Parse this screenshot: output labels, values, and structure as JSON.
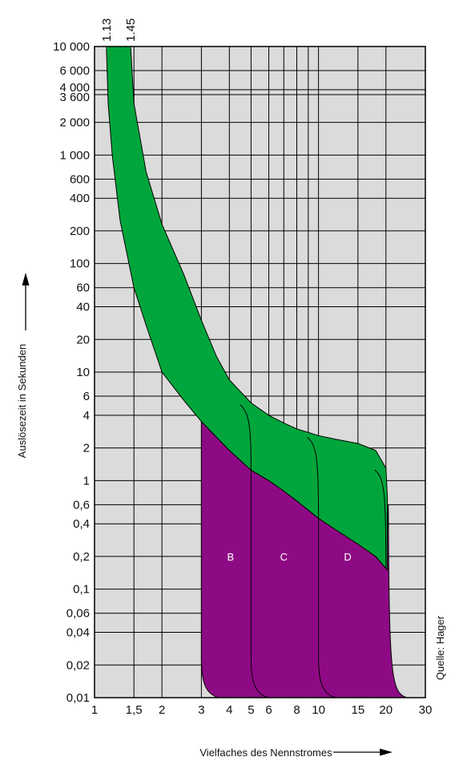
{
  "chart_data": {
    "type": "area",
    "xlabel": "Vielfaches des Nennstromes",
    "ylabel": "Auslösezeit in Sekunden",
    "source": "Quelle: Hager",
    "x_scale": "log",
    "y_scale": "log",
    "xlim": [
      1,
      30
    ],
    "ylim": [
      0.01,
      10000
    ],
    "x_ticks": [
      {
        "value": 1,
        "label": "1"
      },
      {
        "value": 1.5,
        "label": "1,5"
      },
      {
        "value": 2,
        "label": "2"
      },
      {
        "value": 3,
        "label": "3"
      },
      {
        "value": 4,
        "label": "4"
      },
      {
        "value": 5,
        "label": "5"
      },
      {
        "value": 6,
        "label": "6"
      },
      {
        "value": 8,
        "label": "8"
      },
      {
        "value": 10,
        "label": "10"
      },
      {
        "value": 15,
        "label": "15"
      },
      {
        "value": 20,
        "label": "20"
      },
      {
        "value": 30,
        "label": "30"
      }
    ],
    "x_gridlines": [
      1.5,
      2,
      3,
      4,
      5,
      6,
      7,
      8,
      9,
      10,
      15,
      20
    ],
    "y_ticks": [
      {
        "value": 10000,
        "label": "10 000"
      },
      {
        "value": 6000,
        "label": "6 000"
      },
      {
        "value": 4000,
        "label": "4 000"
      },
      {
        "value": 3600,
        "label": "3 600"
      },
      {
        "value": 2000,
        "label": "2 000"
      },
      {
        "value": 1000,
        "label": "1 000"
      },
      {
        "value": 600,
        "label": "600"
      },
      {
        "value": 400,
        "label": "400"
      },
      {
        "value": 200,
        "label": "200"
      },
      {
        "value": 100,
        "label": "100"
      },
      {
        "value": 60,
        "label": "60"
      },
      {
        "value": 40,
        "label": "40"
      },
      {
        "value": 20,
        "label": "20"
      },
      {
        "value": 10,
        "label": "10"
      },
      {
        "value": 6,
        "label": "6"
      },
      {
        "value": 4,
        "label": "4"
      },
      {
        "value": 2,
        "label": "2"
      },
      {
        "value": 1,
        "label": "1"
      },
      {
        "value": 0.6,
        "label": "0,6"
      },
      {
        "value": 0.4,
        "label": "0,4"
      },
      {
        "value": 0.2,
        "label": "0,2"
      },
      {
        "value": 0.1,
        "label": "0,1"
      },
      {
        "value": 0.06,
        "label": "0,06"
      },
      {
        "value": 0.04,
        "label": "0,04"
      },
      {
        "value": 0.02,
        "label": "0,02"
      },
      {
        "value": 0.01,
        "label": "0,01"
      }
    ],
    "top_markers": [
      {
        "value": 1.13,
        "label": "1.13"
      },
      {
        "value": 1.45,
        "label": "1.45"
      }
    ],
    "thermal_band": {
      "color": "#00a63c",
      "upper": [
        [
          1.45,
          10000
        ],
        [
          1.5,
          3000
        ],
        [
          1.7,
          700
        ],
        [
          2,
          230
        ],
        [
          2.5,
          80
        ],
        [
          3,
          30
        ],
        [
          3.5,
          14
        ],
        [
          4,
          8.5
        ],
        [
          5,
          5.2
        ],
        [
          6,
          4
        ],
        [
          7,
          3.4
        ],
        [
          8,
          3
        ],
        [
          10,
          2.6
        ],
        [
          12,
          2.4
        ],
        [
          15,
          2.2
        ],
        [
          18,
          1.9
        ],
        [
          20,
          1.3
        ],
        [
          20.3,
          0.7
        ]
      ],
      "lower": [
        [
          1.13,
          10000
        ],
        [
          1.15,
          3000
        ],
        [
          1.2,
          1000
        ],
        [
          1.3,
          250
        ],
        [
          1.5,
          60
        ],
        [
          1.7,
          27
        ],
        [
          2,
          10
        ],
        [
          2.5,
          5.5
        ],
        [
          3,
          3.5
        ],
        [
          4,
          1.9
        ],
        [
          5,
          1.25
        ],
        [
          6,
          1.0
        ],
        [
          7,
          0.8
        ],
        [
          8,
          0.65
        ],
        [
          10,
          0.45
        ],
        [
          12,
          0.35
        ],
        [
          15,
          0.26
        ],
        [
          18,
          0.2
        ],
        [
          20.3,
          0.15
        ]
      ]
    },
    "zones": [
      {
        "name": "B",
        "label_x": 4.05,
        "label_y": 0.2,
        "magnetic_from": 3,
        "magnetic_to": 5
      },
      {
        "name": "C",
        "label_x": 7.0,
        "label_y": 0.2,
        "magnetic_from": 5,
        "magnetic_to": 10
      },
      {
        "name": "D",
        "label_x": 13.5,
        "label_y": 0.2,
        "magnetic_from": 10,
        "magnetic_to": 20
      }
    ],
    "magnetic_color": "#8e0a85",
    "grid": true,
    "background": "#dbdbdb"
  }
}
